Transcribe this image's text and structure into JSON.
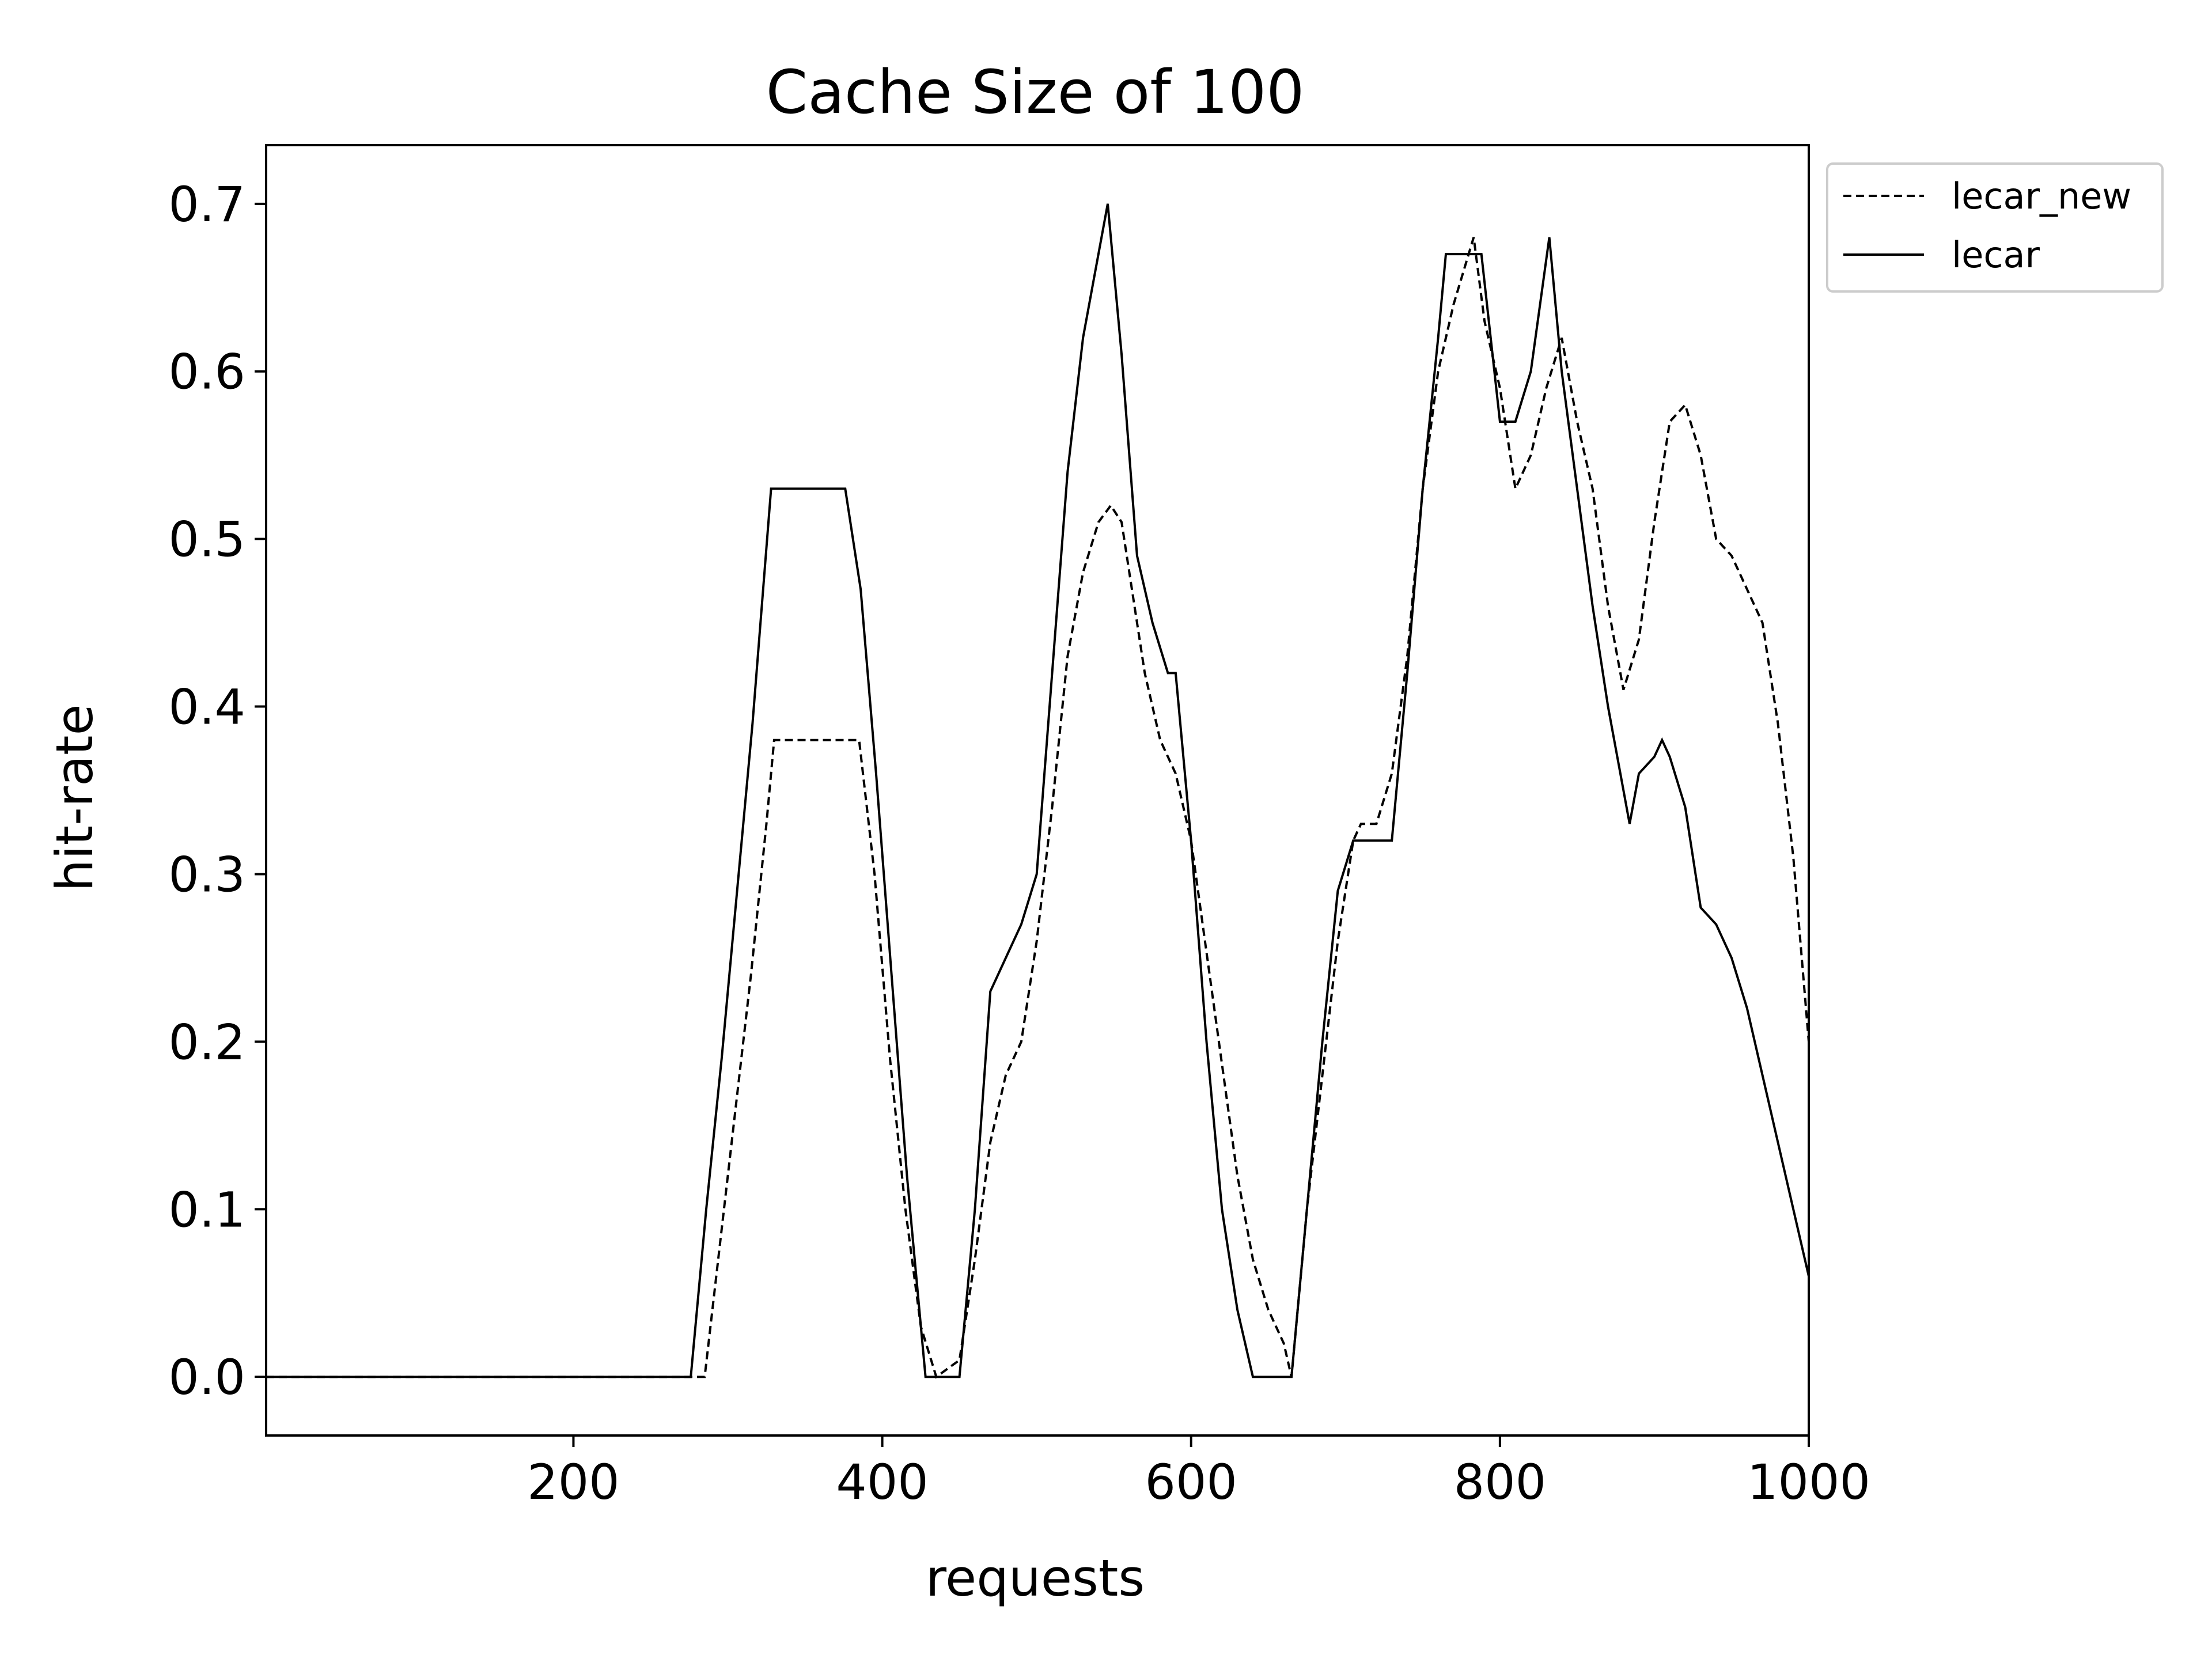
{
  "chart_data": {
    "type": "line",
    "title": "Cache Size of 100",
    "xlabel": "requests",
    "ylabel": "hit-rate",
    "xlim": [
      1,
      1000
    ],
    "ylim": [
      -0.035,
      0.735
    ],
    "xticks": [
      200,
      400,
      600,
      800,
      1000
    ],
    "xtick_labels": [
      "200",
      "400",
      "600",
      "800",
      "1000"
    ],
    "yticks": [
      0.0,
      0.1,
      0.2,
      0.3,
      0.4,
      0.5,
      0.6,
      0.7
    ],
    "ytick_labels": [
      "0.0",
      "0.1",
      "0.2",
      "0.3",
      "0.4",
      "0.5",
      "0.6",
      "0.7"
    ],
    "grid": false,
    "legend_position": "outside top-right",
    "series": [
      {
        "name": "lecar_new",
        "style": "dashed",
        "color": "#000000",
        "x": [
          1,
          285,
          295,
          305,
          315,
          325,
          330,
          340,
          360,
          385,
          395,
          405,
          415,
          425,
          435,
          450,
          460,
          470,
          480,
          490,
          500,
          510,
          520,
          530,
          540,
          548,
          555,
          560,
          570,
          580,
          590,
          600,
          615,
          630,
          640,
          650,
          660,
          665,
          675,
          685,
          695,
          705,
          710,
          720,
          730,
          740,
          750,
          760,
          770,
          783,
          790,
          800,
          810,
          820,
          830,
          840,
          850,
          860,
          870,
          880,
          890,
          900,
          910,
          920,
          930,
          940,
          950,
          960,
          970,
          980,
          990,
          1000
        ],
        "values": [
          0,
          0,
          0.08,
          0.16,
          0.24,
          0.33,
          0.38,
          0.38,
          0.38,
          0.38,
          0.3,
          0.19,
          0.1,
          0.03,
          0,
          0.01,
          0.07,
          0.14,
          0.18,
          0.2,
          0.26,
          0.34,
          0.43,
          0.48,
          0.51,
          0.52,
          0.51,
          0.48,
          0.42,
          0.38,
          0.36,
          0.32,
          0.22,
          0.12,
          0.07,
          0.04,
          0.02,
          0,
          0.1,
          0.18,
          0.26,
          0.32,
          0.33,
          0.33,
          0.36,
          0.43,
          0.53,
          0.6,
          0.64,
          0.68,
          0.63,
          0.59,
          0.53,
          0.55,
          0.59,
          0.62,
          0.57,
          0.53,
          0.46,
          0.41,
          0.44,
          0.51,
          0.57,
          0.58,
          0.55,
          0.5,
          0.49,
          0.47,
          0.45,
          0.39,
          0.31,
          0.2
        ]
      },
      {
        "name": "lecar",
        "style": "solid",
        "color": "#000000",
        "x": [
          1,
          276,
          286,
          296,
          306,
          316,
          328,
          350,
          376,
          386,
          396,
          406,
          416,
          428,
          440,
          450,
          460,
          470,
          480,
          490,
          500,
          510,
          520,
          530,
          538,
          546,
          555,
          565,
          575,
          585,
          590,
          600,
          610,
          620,
          630,
          640,
          645,
          665,
          675,
          685,
          695,
          705,
          710,
          730,
          740,
          750,
          760,
          765,
          784,
          788,
          800,
          810,
          820,
          832,
          840,
          850,
          860,
          870,
          880,
          884,
          890,
          900,
          905,
          910,
          920,
          930,
          940,
          950,
          960,
          970,
          980,
          990,
          1000
        ],
        "values": [
          0,
          0,
          0.1,
          0.19,
          0.29,
          0.39,
          0.53,
          0.53,
          0.53,
          0.47,
          0.36,
          0.24,
          0.12,
          0,
          0,
          0,
          0.1,
          0.23,
          0.25,
          0.27,
          0.3,
          0.42,
          0.54,
          0.62,
          0.66,
          0.7,
          0.61,
          0.49,
          0.45,
          0.42,
          0.42,
          0.32,
          0.2,
          0.1,
          0.04,
          0,
          0,
          0,
          0.1,
          0.2,
          0.29,
          0.32,
          0.32,
          0.32,
          0.42,
          0.53,
          0.62,
          0.67,
          0.67,
          0.67,
          0.57,
          0.57,
          0.6,
          0.68,
          0.6,
          0.53,
          0.46,
          0.4,
          0.35,
          0.33,
          0.36,
          0.37,
          0.38,
          0.37,
          0.34,
          0.28,
          0.27,
          0.25,
          0.22,
          0.18,
          0.14,
          0.1,
          0.06
        ]
      }
    ]
  }
}
